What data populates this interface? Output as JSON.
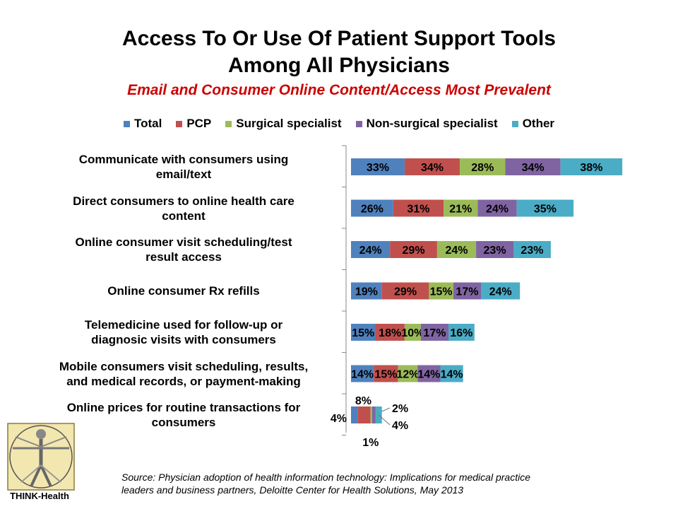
{
  "title_line1": "Access To Or Use Of Patient Support Tools",
  "title_line2": "Among All Physicians",
  "subtitle": "Email and Consumer Online Content/Access Most Prevalent",
  "source_line1": "Source: Physician adoption of health information technology: Implications for medical practice",
  "source_line2": "leaders and business partners, Deloitte Center for Health Solutions, May 2013",
  "logo_text": "THINK-Health",
  "colors": {
    "Total": "#4f81bd",
    "PCP": "#c0504d",
    "Surgical specialist": "#9bbb59",
    "Non-surgical specialist": "#8064a2",
    "Other": "#4bacc6"
  },
  "chart_data": {
    "type": "bar",
    "orientation": "horizontal",
    "stacked": true,
    "categories": [
      "Communicate with consumers using email/text",
      "Direct consumers to online health care content",
      "Online consumer visit scheduling/test result access",
      "Online consumer Rx refills",
      "Telemedicine used for follow-up or diagnosic visits with consumers",
      "Mobile consumers visit scheduling, results, and medical records, or payment-making",
      "Online prices for routine transactions for consumers"
    ],
    "category_lines": [
      [
        "Communicate with consumers using",
        "email/text"
      ],
      [
        "Direct consumers to online health care",
        "content"
      ],
      [
        "Online consumer visit scheduling/test",
        "result access"
      ],
      [
        "Online consumer Rx refills"
      ],
      [
        "Telemedicine used for follow-up or",
        "diagnosic visits with consumers"
      ],
      [
        "Mobile consumers visit scheduling, results,",
        "and medical records, or payment-making"
      ],
      [
        "Online prices for routine transactions for",
        "consumers"
      ]
    ],
    "series": [
      {
        "name": "Total",
        "values": [
          33,
          26,
          24,
          19,
          15,
          14,
          4
        ]
      },
      {
        "name": "PCP",
        "values": [
          34,
          31,
          29,
          29,
          18,
          15,
          8
        ]
      },
      {
        "name": "Surgical specialist",
        "values": [
          28,
          21,
          24,
          15,
          10,
          12,
          1
        ]
      },
      {
        "name": "Non-surgical specialist",
        "values": [
          34,
          24,
          23,
          17,
          17,
          14,
          2
        ]
      },
      {
        "name": "Other",
        "values": [
          38,
          35,
          23,
          24,
          16,
          14,
          4
        ]
      }
    ],
    "value_suffix": "%",
    "legend_position": "top",
    "grid": false
  }
}
